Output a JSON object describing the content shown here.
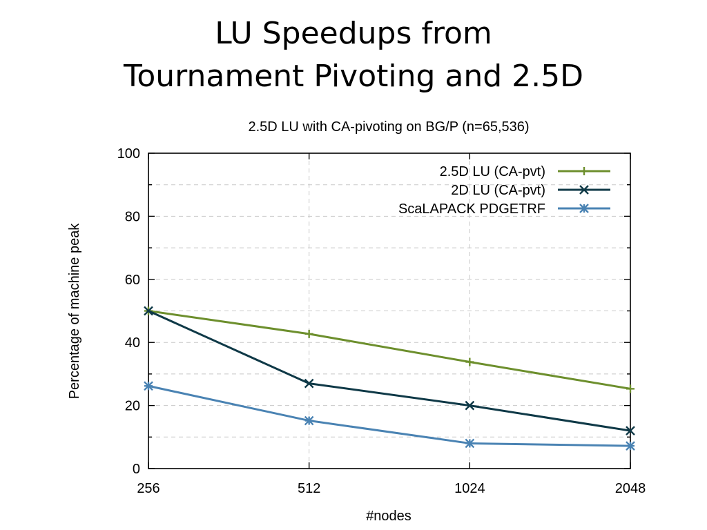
{
  "slide": {
    "title_line1": "LU Speedups from",
    "title_line2": "Tournament Pivoting and 2.5D"
  },
  "chart_data": {
    "type": "line",
    "title": "2.5D LU with CA-pivoting on BG/P (n=65,536)",
    "xlabel": "#nodes",
    "ylabel": "Percentage of machine peak",
    "x_scale": "log2",
    "x": [
      256,
      512,
      1024,
      2048
    ],
    "xticks": [
      "256",
      "512",
      "1024",
      "2048"
    ],
    "ylim": [
      0,
      100
    ],
    "yticks": [
      0,
      20,
      40,
      60,
      80,
      100
    ],
    "grid": true,
    "legend_position": "top-right",
    "series": [
      {
        "name": "2.5D LU (CA-pvt)",
        "marker": "plus",
        "color": "#6d8f2d",
        "values": [
          50,
          42.7,
          33.8,
          25.3
        ]
      },
      {
        "name": "2D LU (CA-pvt)",
        "marker": "cross",
        "color": "#0f3947",
        "values": [
          50,
          27,
          20,
          12
        ]
      },
      {
        "name": "ScaLAPACK PDGETRF",
        "marker": "star",
        "color": "#4a83b3",
        "values": [
          26.2,
          15.2,
          8,
          7.2
        ]
      }
    ]
  }
}
